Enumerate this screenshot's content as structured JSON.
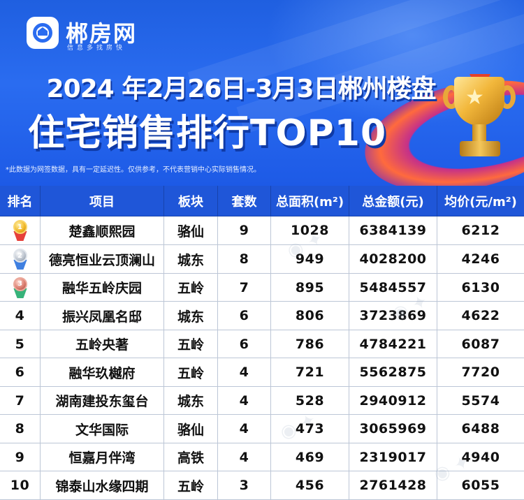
{
  "brand": {
    "name": "郴房网",
    "slogan": "信息多找房快"
  },
  "title": {
    "line1": "2024 年2月26日-3月3日郴州楼盘",
    "line2": "住宅销售排行TOP10"
  },
  "disclaimer": "*此数据为网签数据，具有一定延迟性。仅供参考，不代表营销中心实际销售情况。",
  "table": {
    "headers": [
      "排名",
      "项目",
      "板块",
      "套数",
      "总面积(m²)",
      "总金额(元)",
      "均价(元/m²)"
    ],
    "rows": [
      {
        "rank": "1",
        "project": "楚鑫顺熙园",
        "area": "骆仙",
        "units": "9",
        "total_area": "1028",
        "total_amount": "6384139",
        "avg_price": "6212"
      },
      {
        "rank": "2",
        "project": "德亮恒业云顶澜山",
        "area": "城东",
        "units": "8",
        "total_area": "949",
        "total_amount": "4028200",
        "avg_price": "4246"
      },
      {
        "rank": "3",
        "project": "融华五岭庆园",
        "area": "五岭",
        "units": "7",
        "total_area": "895",
        "total_amount": "5484557",
        "avg_price": "6130"
      },
      {
        "rank": "4",
        "project": "振兴凤凰名邸",
        "area": "城东",
        "units": "6",
        "total_area": "806",
        "total_amount": "3723869",
        "avg_price": "4622"
      },
      {
        "rank": "5",
        "project": "五岭央著",
        "area": "五岭",
        "units": "6",
        "total_area": "786",
        "total_amount": "4784221",
        "avg_price": "6087"
      },
      {
        "rank": "6",
        "project": "融华玖樾府",
        "area": "五岭",
        "units": "4",
        "total_area": "721",
        "total_amount": "5562875",
        "avg_price": "7720"
      },
      {
        "rank": "7",
        "project": "湖南建投东玺台",
        "area": "城东",
        "units": "4",
        "total_area": "528",
        "total_amount": "2940912",
        "avg_price": "5574"
      },
      {
        "rank": "8",
        "project": "文华国际",
        "area": "骆仙",
        "units": "4",
        "total_area": "473",
        "total_amount": "3065969",
        "avg_price": "6488"
      },
      {
        "rank": "9",
        "project": "恒嘉月伴湾",
        "area": "高铁",
        "units": "4",
        "total_area": "469",
        "total_amount": "2319017",
        "avg_price": "4940"
      },
      {
        "rank": "10",
        "project": "锦泰山水缘四期",
        "area": "五岭",
        "units": "3",
        "total_area": "456",
        "total_amount": "2761428",
        "avg_price": "6055"
      }
    ]
  },
  "colors": {
    "header_blue": "#1f56d8",
    "bg_blue": "#2a6cf0",
    "gold": "#f0b522",
    "silver": "#b9c1cc",
    "bronze": "#d9786a"
  },
  "icons": {
    "logo": "house-in-ring-icon",
    "trophy": "trophy-icon",
    "rank1": "gold-medal-icon",
    "rank2": "silver-medal-icon",
    "rank3": "bronze-medal-icon"
  }
}
